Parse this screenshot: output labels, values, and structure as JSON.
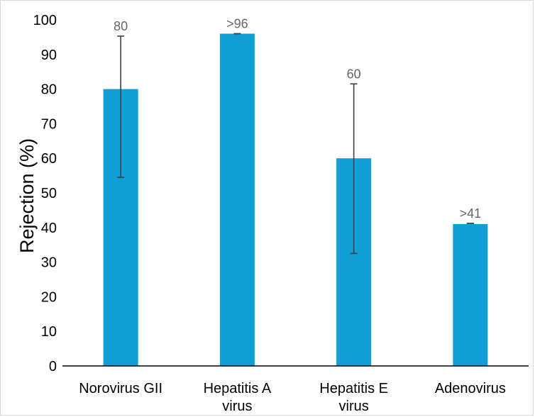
{
  "chart_data": {
    "type": "bar",
    "ylabel": "Rejection (%)",
    "ylim": [
      0,
      100
    ],
    "yticks": [
      0,
      10,
      20,
      30,
      40,
      50,
      60,
      70,
      80,
      90,
      100
    ],
    "categories": [
      [
        "Norovirus GII"
      ],
      [
        "Hepatitis A",
        "virus"
      ],
      [
        "Hepatitis E",
        "virus"
      ],
      [
        "Adenovirus"
      ]
    ],
    "values": [
      80,
      96,
      60,
      41
    ],
    "data_labels": [
      "80",
      ">96",
      "60",
      ">41"
    ],
    "error_bars": [
      {
        "low": 54.5,
        "high": 95.3
      },
      {
        "low": 96,
        "high": 96
      },
      {
        "low": 32.5,
        "high": 81.5
      },
      {
        "low": 41.2,
        "high": 41.2
      }
    ],
    "bar_color": "#0f9ed5",
    "error_color": "#404040",
    "grid": false,
    "legend": "none"
  }
}
